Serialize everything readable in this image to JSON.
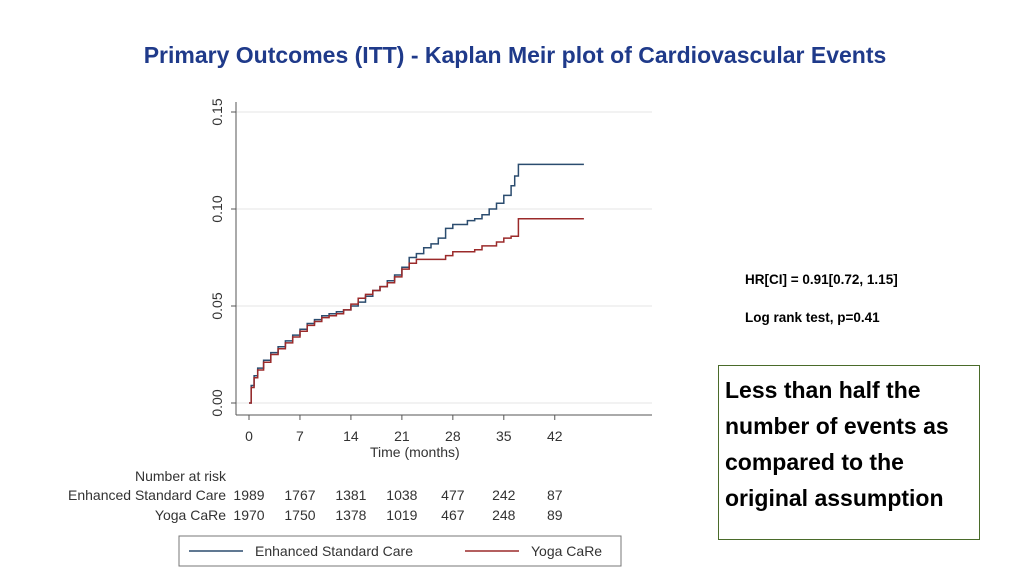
{
  "slide": {
    "title": "Primary Outcomes (ITT) - Kaplan Meir plot of Cardiovascular Events",
    "hr_text": "HR[CI] = 0.91[0.72, 1.15]",
    "logrank_text": "Log rank test, p=0.41",
    "callout_text": "Less than half the number of events as compared to the original assumption"
  },
  "chart_data": {
    "type": "line",
    "xlabel": "Time (months)",
    "ylabel": "",
    "xlim": [
      0,
      46
    ],
    "ylim": [
      0,
      0.15
    ],
    "xticks": [
      0,
      7,
      14,
      21,
      28,
      35,
      42
    ],
    "yticks": [
      "0.00",
      "0.05",
      "0.10",
      "0.15"
    ],
    "grid": true,
    "legend": "bottom",
    "series": [
      {
        "name": "Enhanced Standard Care",
        "color": "#2b4c6f",
        "x": [
          0,
          0.3,
          0.7,
          1.2,
          2,
          3,
          4,
          5,
          6,
          7,
          8,
          9,
          10,
          11,
          12,
          13,
          14,
          15,
          16,
          17,
          18,
          19,
          20,
          21,
          22,
          23,
          24,
          25,
          26,
          27,
          28,
          29,
          30,
          31,
          32,
          33,
          34,
          35,
          36,
          36.5,
          37,
          46
        ],
        "y": [
          0,
          0.009,
          0.014,
          0.018,
          0.022,
          0.026,
          0.029,
          0.032,
          0.035,
          0.038,
          0.041,
          0.043,
          0.045,
          0.046,
          0.047,
          0.048,
          0.05,
          0.052,
          0.055,
          0.058,
          0.06,
          0.063,
          0.066,
          0.07,
          0.075,
          0.077,
          0.08,
          0.082,
          0.085,
          0.09,
          0.092,
          0.092,
          0.094,
          0.095,
          0.097,
          0.1,
          0.103,
          0.107,
          0.112,
          0.117,
          0.123,
          0.123
        ]
      },
      {
        "name": "Yoga CaRe",
        "color": "#9b2a2a",
        "x": [
          0,
          0.3,
          0.7,
          1.2,
          2,
          3,
          4,
          5,
          6,
          7,
          8,
          9,
          10,
          11,
          12,
          13,
          14,
          15,
          16,
          17,
          18,
          19,
          20,
          21,
          22,
          23,
          24,
          25,
          26,
          27,
          28,
          29,
          30,
          31,
          32,
          33,
          34,
          35,
          36,
          37,
          38,
          46
        ],
        "y": [
          0,
          0.008,
          0.013,
          0.017,
          0.021,
          0.025,
          0.028,
          0.031,
          0.034,
          0.037,
          0.04,
          0.042,
          0.044,
          0.045,
          0.046,
          0.048,
          0.051,
          0.054,
          0.056,
          0.058,
          0.06,
          0.062,
          0.065,
          0.069,
          0.072,
          0.074,
          0.074,
          0.074,
          0.074,
          0.076,
          0.078,
          0.078,
          0.078,
          0.079,
          0.081,
          0.081,
          0.083,
          0.085,
          0.086,
          0.095,
          0.095,
          0.095
        ]
      }
    ],
    "risk_table": {
      "header": "Number at risk",
      "rows": [
        {
          "label": "Enhanced Standard Care",
          "values": [
            1989,
            1767,
            1381,
            1038,
            477,
            242,
            87
          ]
        },
        {
          "label": "Yoga CaRe",
          "values": [
            1970,
            1750,
            1378,
            1019,
            467,
            248,
            89
          ]
        }
      ]
    }
  }
}
